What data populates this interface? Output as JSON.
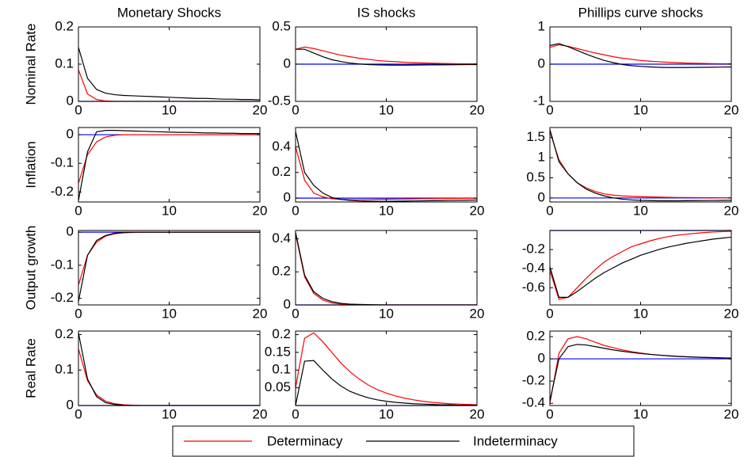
{
  "chart_data": [
    {
      "type": "line",
      "title": "Monetary Shocks",
      "ylabel": "Nominal Rate",
      "x": [
        0,
        1,
        2,
        3,
        4,
        5,
        6,
        7,
        8,
        9,
        10,
        11,
        12,
        13,
        14,
        15,
        16,
        17,
        18,
        19,
        20
      ],
      "xlim": [
        0,
        20
      ],
      "xticks": [
        0,
        10,
        20
      ],
      "ylim": [
        0,
        0.2
      ],
      "yticks": [
        0,
        0.1,
        0.2
      ],
      "zero_line": "#0000ff",
      "series": [
        {
          "name": "Determinacy",
          "color": "#ff0000",
          "values": [
            0.085,
            0.02,
            0.005,
            0.001,
            0,
            0,
            0,
            0,
            0,
            0,
            0,
            0,
            0,
            0,
            0,
            0,
            0,
            0,
            0,
            0,
            0
          ]
        },
        {
          "name": "Indeterminacy",
          "color": "#000000",
          "values": [
            0.145,
            0.062,
            0.032,
            0.022,
            0.018,
            0.016,
            0.015,
            0.014,
            0.013,
            0.012,
            0.011,
            0.01,
            0.009,
            0.008,
            0.008,
            0.007,
            0.006,
            0.006,
            0.005,
            0.005,
            0.004
          ]
        }
      ]
    },
    {
      "type": "line",
      "title": "IS shocks",
      "x": [
        0,
        1,
        2,
        3,
        4,
        5,
        6,
        7,
        8,
        9,
        10,
        11,
        12,
        13,
        14,
        15,
        16,
        17,
        18,
        19,
        20
      ],
      "xlim": [
        0,
        20
      ],
      "xticks": [
        0,
        10,
        20
      ],
      "ylim": [
        -0.5,
        0.5
      ],
      "yticks": [
        -0.5,
        0,
        0.5
      ],
      "zero_line": "#0000ff",
      "series": [
        {
          "color": "#ff0000",
          "values": [
            0.2,
            0.23,
            0.21,
            0.18,
            0.15,
            0.12,
            0.1,
            0.08,
            0.065,
            0.05,
            0.04,
            0.033,
            0.026,
            0.02,
            0.016,
            0.013,
            0.01,
            0.008,
            0.006,
            0.005,
            0.004
          ]
        },
        {
          "color": "#000000",
          "values": [
            0.2,
            0.2,
            0.15,
            0.1,
            0.06,
            0.035,
            0.015,
            0.003,
            -0.005,
            -0.01,
            -0.012,
            -0.013,
            -0.013,
            -0.012,
            -0.011,
            -0.01,
            -0.009,
            -0.008,
            -0.007,
            -0.006,
            -0.005
          ]
        }
      ]
    },
    {
      "type": "line",
      "title": "Phillips curve shocks",
      "x": [
        0,
        1,
        2,
        3,
        4,
        5,
        6,
        7,
        8,
        9,
        10,
        11,
        12,
        13,
        14,
        15,
        16,
        17,
        18,
        19,
        20
      ],
      "xlim": [
        0,
        20
      ],
      "xticks": [
        0,
        10,
        20
      ],
      "ylim": [
        -1,
        1
      ],
      "yticks": [
        -1,
        0,
        1
      ],
      "zero_line": "#0000ff",
      "series": [
        {
          "color": "#ff0000",
          "values": [
            0.45,
            0.52,
            0.48,
            0.42,
            0.36,
            0.3,
            0.25,
            0.2,
            0.16,
            0.13,
            0.1,
            0.08,
            0.065,
            0.05,
            0.04,
            0.03,
            0.025,
            0.02,
            0.015,
            0.012,
            0.01
          ]
        },
        {
          "color": "#000000",
          "values": [
            0.5,
            0.55,
            0.47,
            0.37,
            0.27,
            0.18,
            0.1,
            0.04,
            -0.01,
            -0.04,
            -0.06,
            -0.075,
            -0.085,
            -0.09,
            -0.09,
            -0.09,
            -0.088,
            -0.085,
            -0.082,
            -0.078,
            -0.075
          ]
        }
      ]
    },
    {
      "type": "line",
      "ylabel": "Inflation",
      "x": [
        0,
        1,
        2,
        3,
        4,
        5,
        6,
        7,
        8,
        9,
        10,
        11,
        12,
        13,
        14,
        15,
        16,
        17,
        18,
        19,
        20
      ],
      "xlim": [
        0,
        20
      ],
      "xticks": [
        0,
        10,
        20
      ],
      "ylim": [
        -0.235,
        0.025
      ],
      "yticks": [
        -0.2,
        -0.1,
        0
      ],
      "zero_line": "#0000ff",
      "series": [
        {
          "color": "#ff0000",
          "values": [
            -0.17,
            -0.07,
            -0.025,
            -0.008,
            -0.002,
            0,
            0,
            0,
            0,
            0,
            0,
            0,
            0,
            0,
            0,
            0,
            0,
            0,
            0,
            0,
            0
          ]
        },
        {
          "color": "#000000",
          "values": [
            -0.23,
            -0.06,
            0.01,
            0.015,
            0.015,
            0.014,
            0.013,
            0.012,
            0.011,
            0.01,
            0.009,
            0.008,
            0.008,
            0.007,
            0.006,
            0.006,
            0.005,
            0.005,
            0.004,
            0.004,
            0.004
          ]
        }
      ]
    },
    {
      "type": "line",
      "x": [
        0,
        1,
        2,
        3,
        4,
        5,
        6,
        7,
        8,
        9,
        10,
        11,
        12,
        13,
        14,
        15,
        16,
        17,
        18,
        19,
        20
      ],
      "xlim": [
        0,
        20
      ],
      "xticks": [
        0,
        10,
        20
      ],
      "ylim": [
        -0.03,
        0.55
      ],
      "yticks": [
        0,
        0.2,
        0.4
      ],
      "zero_line": "#0000ff",
      "series": [
        {
          "color": "#ff0000",
          "values": [
            0.4,
            0.14,
            0.04,
            0.01,
            -0.005,
            -0.01,
            -0.012,
            -0.012,
            -0.011,
            -0.01,
            -0.009,
            -0.008,
            -0.007,
            -0.006,
            -0.005,
            -0.004,
            -0.003,
            -0.003,
            -0.002,
            -0.002,
            -0.001
          ]
        },
        {
          "color": "#000000",
          "values": [
            0.52,
            0.2,
            0.1,
            0.04,
            0.005,
            -0.01,
            -0.018,
            -0.022,
            -0.024,
            -0.025,
            -0.025,
            -0.024,
            -0.023,
            -0.022,
            -0.021,
            -0.02,
            -0.019,
            -0.018,
            -0.017,
            -0.016,
            -0.015
          ]
        }
      ]
    },
    {
      "type": "line",
      "x": [
        0,
        1,
        2,
        3,
        4,
        5,
        6,
        7,
        8,
        9,
        10,
        11,
        12,
        13,
        14,
        15,
        16,
        17,
        18,
        19,
        20
      ],
      "xlim": [
        0,
        20
      ],
      "xticks": [
        0,
        10,
        20
      ],
      "ylim": [
        -0.1,
        1.75
      ],
      "yticks": [
        0,
        0.5,
        1,
        1.5
      ],
      "zero_line": "#0000ff",
      "series": [
        {
          "color": "#ff0000",
          "values": [
            1.65,
            0.95,
            0.6,
            0.38,
            0.25,
            0.16,
            0.1,
            0.07,
            0.05,
            0.04,
            0.03,
            0.025,
            0.02,
            0.015,
            0.012,
            0.01,
            0.008,
            0.006,
            0.005,
            0.004,
            0.003
          ]
        },
        {
          "color": "#000000",
          "values": [
            1.7,
            0.9,
            0.6,
            0.38,
            0.22,
            0.12,
            0.05,
            0,
            -0.03,
            -0.05,
            -0.06,
            -0.065,
            -0.07,
            -0.07,
            -0.07,
            -0.068,
            -0.066,
            -0.064,
            -0.062,
            -0.06,
            -0.058
          ]
        }
      ]
    },
    {
      "type": "line",
      "ylabel": "Output growth",
      "x": [
        0,
        1,
        2,
        3,
        4,
        5,
        6,
        7,
        8,
        9,
        10,
        11,
        12,
        13,
        14,
        15,
        16,
        17,
        18,
        19,
        20
      ],
      "xlim": [
        0,
        20
      ],
      "xticks": [
        0,
        10,
        20
      ],
      "ylim": [
        -0.22,
        0.005
      ],
      "yticks": [
        -0.2,
        -0.1,
        0
      ],
      "zero_line": "#0000ff",
      "series": [
        {
          "color": "#ff0000",
          "values": [
            -0.16,
            -0.07,
            -0.03,
            -0.012,
            -0.005,
            -0.002,
            -0.001,
            0,
            0,
            0,
            0,
            0,
            0,
            0,
            0,
            0,
            0,
            0,
            0,
            0,
            0
          ]
        },
        {
          "color": "#000000",
          "values": [
            -0.21,
            -0.07,
            -0.025,
            -0.01,
            -0.003,
            -0.001,
            0,
            0,
            0,
            0,
            0,
            0,
            0,
            0,
            0,
            0,
            0,
            0,
            0,
            0,
            0
          ]
        }
      ]
    },
    {
      "type": "line",
      "x": [
        0,
        1,
        2,
        3,
        4,
        5,
        6,
        7,
        8,
        9,
        10,
        11,
        12,
        13,
        14,
        15,
        16,
        17,
        18,
        19,
        20
      ],
      "xlim": [
        0,
        20
      ],
      "xticks": [
        0,
        10,
        20
      ],
      "ylim": [
        0,
        0.45
      ],
      "yticks": [
        0,
        0.2,
        0.4
      ],
      "zero_line": "#0000ff",
      "series": [
        {
          "color": "#ff0000",
          "values": [
            0.43,
            0.17,
            0.07,
            0.03,
            0.012,
            0.005,
            0.002,
            0.001,
            0,
            0,
            0,
            0,
            0,
            0,
            0,
            0,
            0,
            0,
            0,
            0,
            0
          ]
        },
        {
          "color": "#000000",
          "values": [
            0.44,
            0.18,
            0.08,
            0.04,
            0.02,
            0.01,
            0.005,
            0.003,
            0.002,
            0.001,
            0,
            0,
            0,
            0,
            0,
            0,
            0,
            0,
            0,
            0,
            0
          ]
        }
      ]
    },
    {
      "type": "line",
      "x": [
        0,
        1,
        2,
        3,
        4,
        5,
        6,
        7,
        8,
        9,
        10,
        11,
        12,
        13,
        14,
        15,
        16,
        17,
        18,
        19,
        20
      ],
      "xlim": [
        0,
        20
      ],
      "xticks": [
        0,
        10,
        20
      ],
      "ylim": [
        -0.78,
        0
      ],
      "yticks": [
        -0.6,
        -0.4,
        -0.2
      ],
      "zero_line": "#0000ff",
      "series": [
        {
          "color": "#ff0000",
          "values": [
            -0.42,
            -0.72,
            -0.7,
            -0.6,
            -0.5,
            -0.41,
            -0.33,
            -0.27,
            -0.22,
            -0.17,
            -0.14,
            -0.11,
            -0.085,
            -0.065,
            -0.05,
            -0.04,
            -0.03,
            -0.022,
            -0.016,
            -0.012,
            -0.009
          ]
        },
        {
          "color": "#000000",
          "values": [
            -0.38,
            -0.7,
            -0.7,
            -0.64,
            -0.57,
            -0.5,
            -0.44,
            -0.39,
            -0.34,
            -0.3,
            -0.26,
            -0.23,
            -0.2,
            -0.175,
            -0.155,
            -0.135,
            -0.12,
            -0.105,
            -0.09,
            -0.08,
            -0.07
          ]
        }
      ]
    },
    {
      "type": "line",
      "ylabel": "Real Rate",
      "x": [
        0,
        1,
        2,
        3,
        4,
        5,
        6,
        7,
        8,
        9,
        10,
        11,
        12,
        13,
        14,
        15,
        16,
        17,
        18,
        19,
        20
      ],
      "xlim": [
        0,
        20
      ],
      "xticks": [
        0,
        10,
        20
      ],
      "ylim": [
        0,
        0.21
      ],
      "yticks": [
        0,
        0.1,
        0.2
      ],
      "zero_line": "#0000ff",
      "series": [
        {
          "color": "#ff0000",
          "values": [
            0.16,
            0.07,
            0.03,
            0.012,
            0.005,
            0.002,
            0.001,
            0,
            0,
            0,
            0,
            0,
            0,
            0,
            0,
            0,
            0,
            0,
            0,
            0,
            0
          ]
        },
        {
          "color": "#000000",
          "values": [
            0.205,
            0.075,
            0.025,
            0.008,
            0.003,
            0.001,
            0,
            0,
            0,
            0,
            0,
            0,
            0,
            0,
            0,
            0,
            0,
            0,
            0,
            0,
            0
          ]
        }
      ]
    },
    {
      "type": "line",
      "x": [
        0,
        1,
        2,
        3,
        4,
        5,
        6,
        7,
        8,
        9,
        10,
        11,
        12,
        13,
        14,
        15,
        16,
        17,
        18,
        19,
        20
      ],
      "xlim": [
        0,
        20
      ],
      "xticks": [
        0,
        10,
        20
      ],
      "ylim": [
        0,
        0.21
      ],
      "yticks": [
        0.05,
        0.1,
        0.15,
        0.2
      ],
      "zero_line": "#0000ff",
      "series": [
        {
          "color": "#ff0000",
          "values": [
            0.05,
            0.19,
            0.205,
            0.18,
            0.15,
            0.12,
            0.095,
            0.075,
            0.058,
            0.045,
            0.035,
            0.027,
            0.021,
            0.016,
            0.012,
            0.009,
            0.007,
            0.005,
            0.004,
            0.003,
            0.002
          ]
        },
        {
          "color": "#000000",
          "values": [
            0,
            0.125,
            0.127,
            0.1,
            0.075,
            0.055,
            0.04,
            0.03,
            0.022,
            0.016,
            0.012,
            0.009,
            0.007,
            0.005,
            0.004,
            0.003,
            0.002,
            0.002,
            0.001,
            0.001,
            0.001
          ]
        }
      ]
    },
    {
      "type": "line",
      "x": [
        0,
        1,
        2,
        3,
        4,
        5,
        6,
        7,
        8,
        9,
        10,
        11,
        12,
        13,
        14,
        15,
        16,
        17,
        18,
        19,
        20
      ],
      "xlim": [
        0,
        20
      ],
      "xticks": [
        0,
        10,
        20
      ],
      "ylim": [
        -0.42,
        0.25
      ],
      "yticks": [
        -0.4,
        -0.2,
        0,
        0.2
      ],
      "zero_line": "#0000ff",
      "series": [
        {
          "color": "#ff0000",
          "values": [
            -0.4,
            0.05,
            0.18,
            0.2,
            0.18,
            0.15,
            0.12,
            0.1,
            0.08,
            0.065,
            0.052,
            0.042,
            0.034,
            0.027,
            0.022,
            0.018,
            0.015,
            0.012,
            0.01,
            0.008,
            0.006
          ]
        },
        {
          "color": "#000000",
          "values": [
            -0.38,
            0,
            0.11,
            0.13,
            0.125,
            0.11,
            0.095,
            0.08,
            0.068,
            0.057,
            0.048,
            0.04,
            0.034,
            0.028,
            0.023,
            0.019,
            0.016,
            0.013,
            0.011,
            0.009,
            0.007
          ]
        }
      ]
    }
  ]
}
